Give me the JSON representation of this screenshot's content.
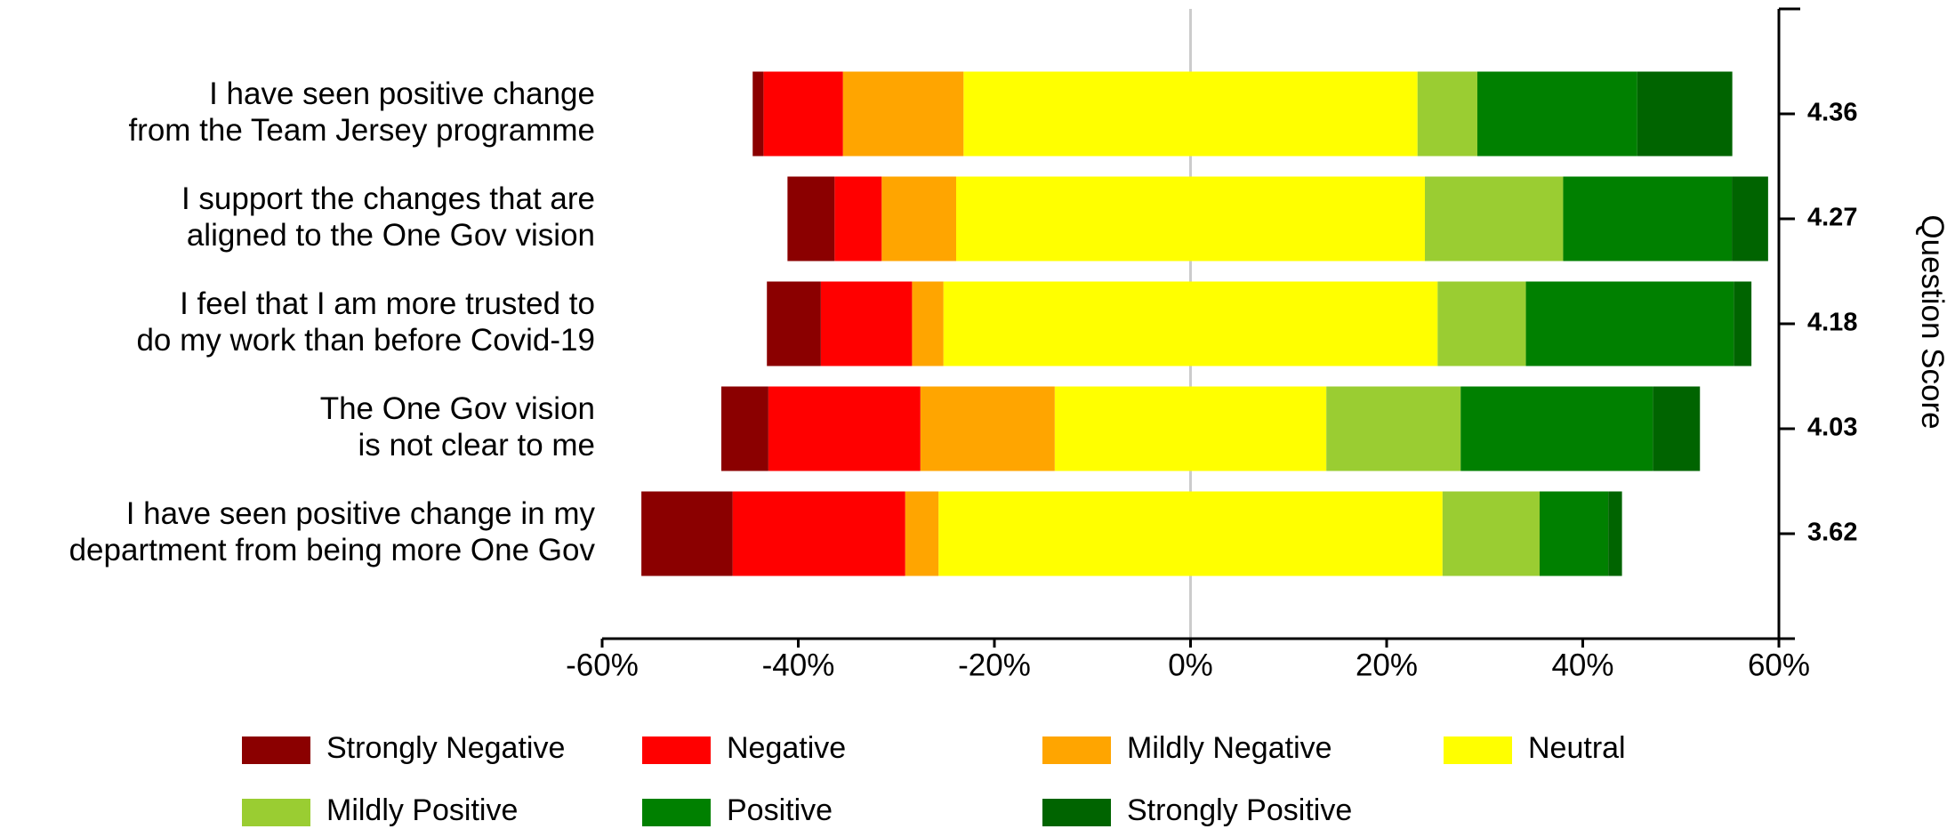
{
  "chart_data": {
    "type": "diverging-bar",
    "categories": [
      [
        "I have seen positive change",
        "from the Team Jersey programme"
      ],
      [
        "I support the changes that are",
        "aligned to the One Gov vision"
      ],
      [
        "I feel that I am more trusted to",
        "do my work than before Covid-19"
      ],
      [
        "The One Gov vision",
        "is not clear to me"
      ],
      [
        "I have seen positive change in my",
        "department from being more One Gov"
      ]
    ],
    "series": [
      {
        "name": "Strongly Negative",
        "color": "#8b0000",
        "side": "negative",
        "values": [
          1.1,
          4.8,
          5.5,
          4.8,
          9.3
        ]
      },
      {
        "name": "Negative",
        "color": "#ff0000",
        "side": "negative",
        "values": [
          8.1,
          4.8,
          9.3,
          15.5,
          17.6
        ]
      },
      {
        "name": "Mildly Negative",
        "color": "#ffa500",
        "side": "negative",
        "values": [
          12.3,
          7.6,
          3.2,
          13.7,
          3.4
        ]
      },
      {
        "name": "Neutral",
        "color": "#ffff00",
        "side": "neutral",
        "values": [
          46.3,
          47.8,
          50.4,
          27.7,
          51.4
        ]
      },
      {
        "name": "Mildly Positive",
        "color": "#9acd32",
        "side": "positive",
        "values": [
          6.1,
          14.1,
          9.0,
          13.7,
          9.9
        ]
      },
      {
        "name": "Positive",
        "color": "#008000",
        "side": "positive",
        "values": [
          16.3,
          17.2,
          21.2,
          19.6,
          7.0
        ]
      },
      {
        "name": "Strongly Positive",
        "color": "#006400",
        "side": "positive",
        "values": [
          9.7,
          3.7,
          1.8,
          4.8,
          1.4
        ]
      }
    ],
    "scores": [
      "4.36",
      "4.27",
      "4.18",
      "4.03",
      "3.62"
    ],
    "y2_label": "Question Score",
    "xlim": [
      -60,
      60
    ],
    "xticks": [
      {
        "value": -60,
        "label": "-60%"
      },
      {
        "value": -40,
        "label": "-40%"
      },
      {
        "value": -20,
        "label": "-20%"
      },
      {
        "value": 0,
        "label": "0%"
      },
      {
        "value": 20,
        "label": "20%"
      },
      {
        "value": 40,
        "label": "40%"
      },
      {
        "value": 60,
        "label": "60%"
      }
    ],
    "zero_line": true,
    "legend": "bottom"
  }
}
